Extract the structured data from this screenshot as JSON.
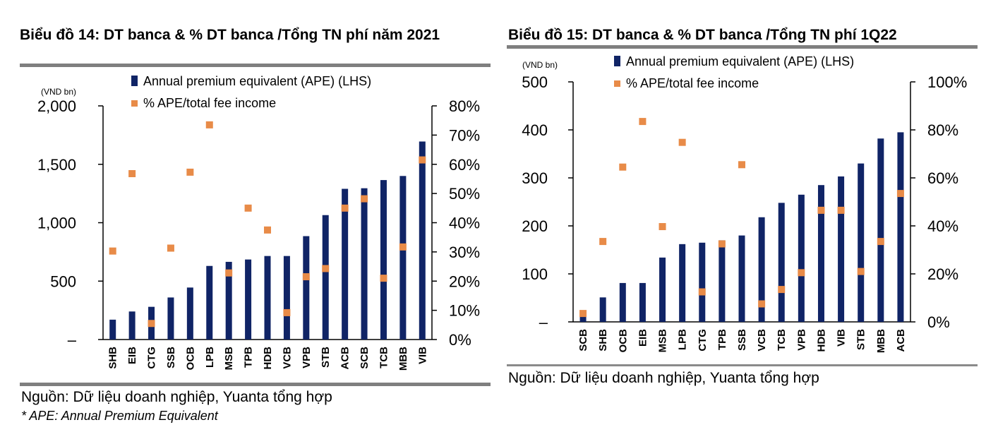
{
  "colors": {
    "bar": "#102466",
    "point": "#E88B48",
    "axis": "#000000",
    "rule": "#7f7f7f"
  },
  "left": {
    "title": "Biểu đồ 14:  DT banca & % DT banca /Tổng TN phí năm 2021",
    "source": "Nguồn: Dữ liệu doanh nghiệp, Yuanta tổng hợp",
    "note": "* APE: Annual Premium Equivalent"
  },
  "right": {
    "title": "Biểu đồ 15:  DT banca & % DT banca /Tổng TN phí 1Q22",
    "source": "Nguồn: Dữ liệu doanh nghiệp, Yuanta tổng hợp"
  },
  "chart_data": [
    {
      "type": "bar",
      "title": "Biểu đồ 14:  DT banca & % DT banca /Tổng TN phí năm 2021",
      "unit_label": "(VND bn)",
      "categories": [
        "SHB",
        "EIB",
        "CTG",
        "SSB",
        "OCB",
        "LPB",
        "MSB",
        "TPB",
        "HDB",
        "VCB",
        "VPB",
        "STB",
        "ACB",
        "SCB",
        "TCB",
        "MBB",
        "VIB"
      ],
      "series": [
        {
          "name": "Annual premium equivalent (APE) (LHS)",
          "axis": "left",
          "kind": "bar",
          "values": [
            170,
            240,
            280,
            360,
            445,
            630,
            665,
            685,
            715,
            715,
            885,
            1065,
            1290,
            1295,
            1365,
            1400,
            1695
          ]
        },
        {
          "name": "% APE/total fee income",
          "axis": "right",
          "kind": "point",
          "values": [
            30.3,
            56.8,
            5.5,
            31.3,
            57.3,
            73.5,
            22.8,
            45.0,
            37.5,
            9.2,
            21.5,
            24.3,
            45.0,
            48.2,
            21.0,
            31.7,
            61.5
          ]
        }
      ],
      "ylim_left": [
        0,
        2000
      ],
      "yticks_left": [
        "–",
        "500",
        "1,000",
        "1,500",
        "2,000"
      ],
      "ylim_right": [
        0,
        80
      ],
      "yticks_right": [
        "0%",
        "10%",
        "20%",
        "30%",
        "40%",
        "50%",
        "60%",
        "70%",
        "80%"
      ]
    },
    {
      "type": "bar",
      "title": "Biểu đồ 15:  DT banca & % DT banca /Tổng TN phí 1Q22",
      "unit_label": "(VND bn)",
      "categories": [
        "SCB",
        "SHB",
        "OCB",
        "EIB",
        "MSB",
        "LPB",
        "CTG",
        "TPB",
        "SSB",
        "VCB",
        "TCB",
        "VPB",
        "HDB",
        "VIB",
        "STB",
        "MBB",
        "ACB"
      ],
      "series": [
        {
          "name": "Annual premium equivalent (APE) (LHS)",
          "axis": "left",
          "kind": "bar",
          "values": [
            13,
            51,
            81,
            81,
            134,
            162,
            165,
            170,
            180,
            218,
            248,
            265,
            285,
            303,
            330,
            382,
            395
          ]
        },
        {
          "name": "% APE/total fee income",
          "axis": "right",
          "kind": "point",
          "values": [
            3.5,
            33.5,
            64.5,
            83.5,
            39.7,
            74.8,
            12.5,
            32.5,
            65.5,
            7.5,
            13.5,
            20.5,
            46.5,
            46.5,
            21.0,
            33.5,
            53.5
          ]
        }
      ],
      "ylim_left": [
        0,
        500
      ],
      "yticks_left": [
        "–",
        "100",
        "200",
        "300",
        "400",
        "500"
      ],
      "ylim_right": [
        0,
        100
      ],
      "yticks_right": [
        "0%",
        "20%",
        "40%",
        "60%",
        "80%",
        "100%"
      ]
    }
  ]
}
